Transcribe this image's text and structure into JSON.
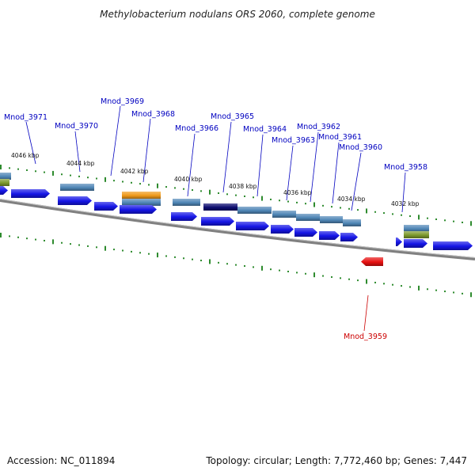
{
  "title": "Methylobacterium nodulans ORS 2060, complete genome",
  "footer": {
    "accession": "Accession: NC_011894",
    "stats": "Topology: circular; Length: 7,772,460 bp; Genes: 7,447"
  },
  "colors": {
    "forward_gene": "#1515e6",
    "reverse_gene": "#e81111",
    "cog_steelblue": "#4f86b6",
    "cog_orange": "#f09a1a",
    "cog_navy": "#0c0c70",
    "cog_olive": "#7d9a2c",
    "backbone": "#808080",
    "tick": "#2e8b2e",
    "label_forward": "#0000c0",
    "label_reverse": "#cc0000"
  },
  "tick_labels": [
    "4046 kbp",
    "4044 kbp",
    "4042 kbp",
    "4040 kbp",
    "4038 kbp",
    "4036 kbp",
    "4034 kbp",
    "4032 kbp"
  ],
  "gene_labels": [
    "Mnod_3971",
    "Mnod_3970",
    "Mnod_3969",
    "Mnod_3968",
    "Mnod_3966",
    "Mnod_3965",
    "Mnod_3964",
    "Mnod_3963",
    "Mnod_3962",
    "Mnod_3961",
    "Mnod_3960",
    "Mnod_3958",
    "Mnod_3959"
  ]
}
